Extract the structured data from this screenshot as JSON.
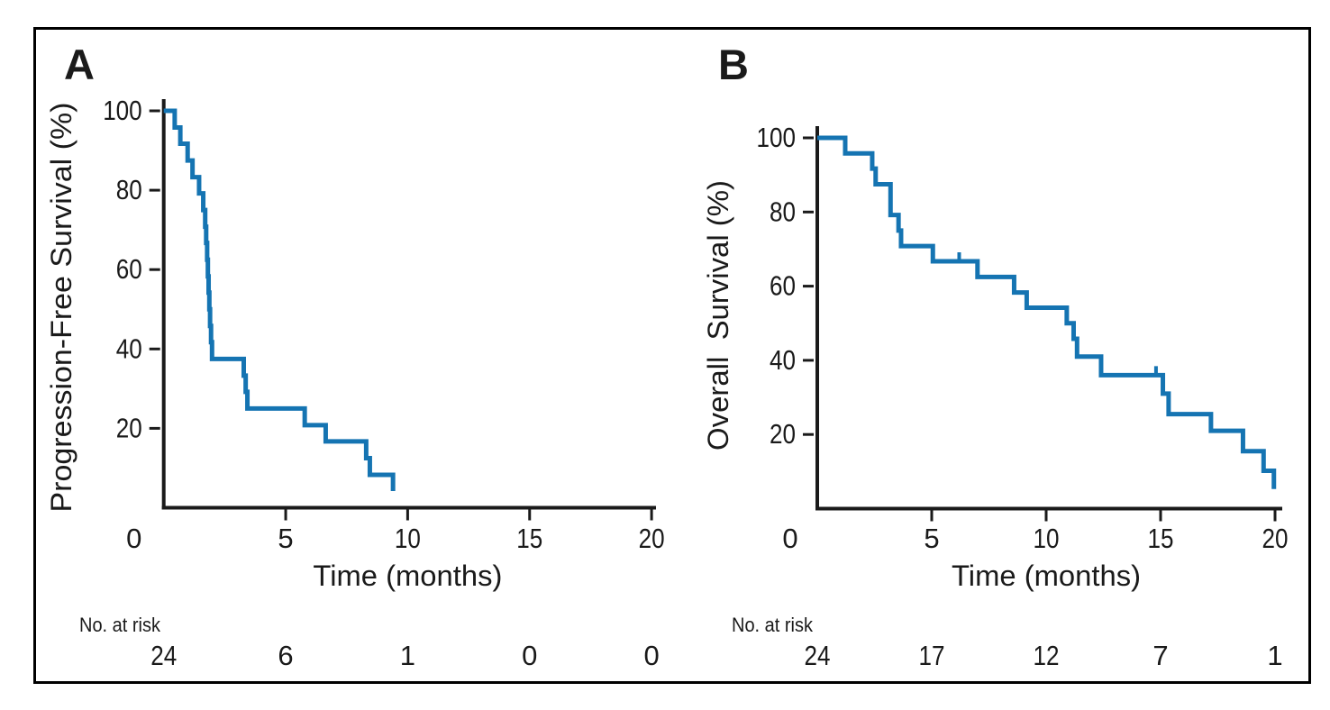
{
  "figure": {
    "type": "kaplan-meier-survival-figure",
    "background_color": "#ffffff",
    "border_color": "#000000"
  },
  "chart_data": [
    {
      "type": "line",
      "subtype": "kaplan-meier-step",
      "panel_label": "A",
      "ylabel": "Progression-Free Survival (%)",
      "xlabel": "Time (months)",
      "xlim": [
        0,
        20
      ],
      "ylim": [
        0,
        100
      ],
      "x_ticks": [
        0,
        5,
        10,
        15,
        20
      ],
      "x_tick_labels": [
        "0",
        "5",
        "10",
        "15",
        "20"
      ],
      "y_ticks": [
        20,
        40,
        60,
        80,
        100
      ],
      "y_tick_labels": [
        "20",
        "40",
        "60",
        "80",
        "100"
      ],
      "line_color": "#1574B2",
      "steps_time_vs_percent": [
        [
          0,
          100
        ],
        [
          0.45,
          95.8
        ],
        [
          0.68,
          91.7
        ],
        [
          0.98,
          87.5
        ],
        [
          1.18,
          83.3
        ],
        [
          1.45,
          79.2
        ],
        [
          1.62,
          75
        ],
        [
          1.7,
          70.8
        ],
        [
          1.74,
          66.7
        ],
        [
          1.78,
          62.5
        ],
        [
          1.81,
          58.3
        ],
        [
          1.84,
          54.2
        ],
        [
          1.87,
          50
        ],
        [
          1.9,
          45.8
        ],
        [
          1.94,
          41.7
        ],
        [
          1.98,
          37.5
        ],
        [
          3.28,
          33.3
        ],
        [
          3.36,
          29.2
        ],
        [
          3.43,
          25
        ],
        [
          5.78,
          20.8
        ],
        [
          6.64,
          16.7
        ],
        [
          8.3,
          12.5
        ],
        [
          8.45,
          8.3
        ],
        [
          9.4,
          4.2
        ]
      ],
      "censor_marks_time_vs_percent": [],
      "at_risk_header": "No. at risk",
      "at_risk_times": [
        0,
        5,
        10,
        15,
        20
      ],
      "at_risk_counts": [
        "24",
        "6",
        "1",
        "0",
        "0"
      ]
    },
    {
      "type": "line",
      "subtype": "kaplan-meier-step",
      "panel_label": "B",
      "ylabel": "Overall  Survival (%)",
      "xlabel": "Time (months)",
      "xlim": [
        0,
        20
      ],
      "ylim": [
        0,
        100
      ],
      "x_ticks": [
        0,
        5,
        10,
        15,
        20
      ],
      "x_tick_labels": [
        "0",
        "5",
        "10",
        "15",
        "20"
      ],
      "y_ticks": [
        20,
        40,
        60,
        80,
        100
      ],
      "y_tick_labels": [
        "20",
        "40",
        "60",
        "80",
        "100"
      ],
      "line_color": "#1574B2",
      "steps_time_vs_percent": [
        [
          0,
          100
        ],
        [
          1.22,
          95.8
        ],
        [
          2.4,
          91.7
        ],
        [
          2.55,
          87.5
        ],
        [
          3.2,
          79.2
        ],
        [
          3.55,
          75
        ],
        [
          3.66,
          70.8
        ],
        [
          5.05,
          66.7
        ],
        [
          7.0,
          62.5
        ],
        [
          8.6,
          58.3
        ],
        [
          9.15,
          54.2
        ],
        [
          10.9,
          50
        ],
        [
          11.2,
          45.8
        ],
        [
          11.35,
          41.0
        ],
        [
          12.4,
          36.0
        ],
        [
          15.1,
          31.0
        ],
        [
          15.35,
          25.5
        ],
        [
          17.2,
          21.0
        ],
        [
          18.6,
          15.5
        ],
        [
          19.5,
          10.2
        ],
        [
          19.95,
          5.3
        ]
      ],
      "censor_marks_time_vs_percent": [
        [
          6.2,
          66.7
        ],
        [
          14.8,
          36.0
        ]
      ],
      "at_risk_header": "No. at risk",
      "at_risk_times": [
        0,
        5,
        10,
        15,
        20
      ],
      "at_risk_counts": [
        "24",
        "17",
        "12",
        "7",
        "1"
      ]
    }
  ]
}
